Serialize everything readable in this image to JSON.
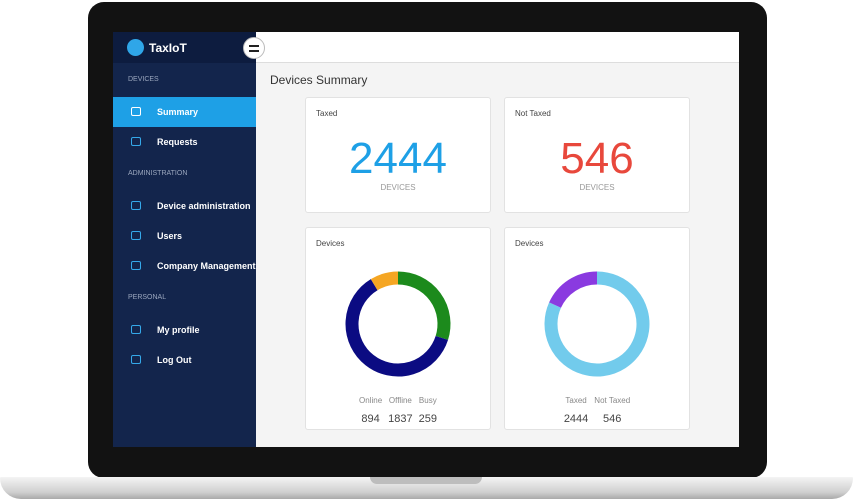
{
  "app": {
    "name": "TaxIoT"
  },
  "sidebar": {
    "sections": [
      {
        "heading": "DEVICES",
        "items": [
          "Summary",
          "Requests"
        ]
      },
      {
        "heading": "ADMINISTRATION",
        "items": [
          "Device administration",
          "Users",
          "Company Management"
        ]
      },
      {
        "heading": "PERSONAL",
        "items": [
          "My profile",
          "Log Out"
        ]
      }
    ]
  },
  "page": {
    "title": "Devices Summary"
  },
  "stats": [
    {
      "label": "Taxed",
      "value": "2444",
      "unit": "DEVICES",
      "color": "#1ea0e6"
    },
    {
      "label": "Not Taxed",
      "value": "546",
      "unit": "DEVICES",
      "color": "#e8483c"
    }
  ],
  "charts": [
    {
      "type": "donut",
      "title": "Devices",
      "categories": [
        "Online",
        "Offline",
        "Busy"
      ],
      "values": [
        894,
        1837,
        259
      ],
      "colors": [
        "#1c8a1c",
        "#0b0b82",
        "#f5a623"
      ]
    },
    {
      "type": "donut",
      "title": "Devices",
      "categories": [
        "Taxed",
        "Not Taxed"
      ],
      "values": [
        2444,
        546
      ],
      "colors": [
        "#72cbec",
        "#8a3ae0"
      ]
    }
  ]
}
